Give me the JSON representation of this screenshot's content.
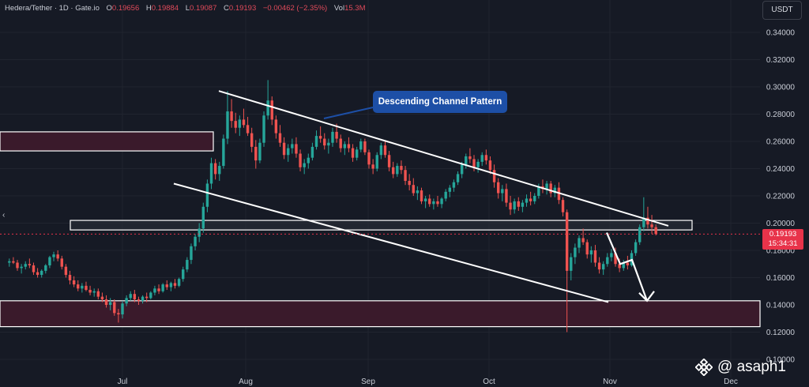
{
  "header": {
    "pair": "Hedera/Tether · 1D · Gate.io",
    "o_label": "O",
    "o_value": "0.19656",
    "h_label": "H",
    "h_value": "0.19884",
    "l_label": "L",
    "l_value": "0.19087",
    "c_label": "C",
    "c_value": "0.19193",
    "change": "−0.00462 (−2.35%)",
    "vol_label": "Vol",
    "vol_value": "15.3M"
  },
  "currency_button": "USDT",
  "annotation": "Descending Channel Pattern",
  "current_price": {
    "value": "0.19193",
    "countdown": "15:34:31"
  },
  "watermark": "@ asaph1",
  "colors": {
    "background": "#161a25",
    "up": "#26a69a",
    "down": "#ef5350",
    "zone_fill": "#3a1a2b",
    "callout": "#1d4fa6",
    "price_tag": "#e8334a"
  },
  "chart_data": {
    "type": "candlestick",
    "ylim": [
      0.1,
      0.35
    ],
    "y_ticks": [
      "0.34000",
      "0.32000",
      "0.30000",
      "0.28000",
      "0.26000",
      "0.24000",
      "0.22000",
      "0.20000",
      "0.18000",
      "0.16000",
      "0.14000",
      "0.12000",
      "0.10000"
    ],
    "x_ticks": [
      "Jul",
      "Aug",
      "Sep",
      "Oct",
      "Nov",
      "Dec"
    ],
    "trendlines": [
      {
        "name": "channel-upper",
        "from": [
          "Jul 27",
          0.297
        ],
        "to": [
          "Nov 18",
          0.198
        ]
      },
      {
        "name": "channel-lower",
        "from": [
          "Jul 13",
          0.229
        ],
        "to": [
          "Nov 1",
          0.142
        ]
      }
    ],
    "zones": [
      {
        "name": "resistance-zone-left",
        "y_range": [
          0.253,
          0.267
        ]
      },
      {
        "name": "pivot-zone",
        "y_range": [
          0.195,
          0.202
        ]
      },
      {
        "name": "support-zone",
        "y_range": [
          0.124,
          0.143
        ]
      }
    ],
    "projection": [
      0.193,
      0.17,
      0.173,
      0.143
    ],
    "series": [
      {
        "start": "Jun 3",
        "interval_days": 1,
        "ohlc": [
          [
            0.171,
            0.174,
            0.168,
            0.172
          ],
          [
            0.172,
            0.175,
            0.17,
            0.171
          ],
          [
            0.171,
            0.173,
            0.165,
            0.167
          ],
          [
            0.167,
            0.17,
            0.163,
            0.168
          ],
          [
            0.168,
            0.172,
            0.166,
            0.17
          ],
          [
            0.17,
            0.174,
            0.167,
            0.169
          ],
          [
            0.169,
            0.171,
            0.162,
            0.164
          ],
          [
            0.164,
            0.167,
            0.16,
            0.162
          ],
          [
            0.162,
            0.166,
            0.16,
            0.165
          ],
          [
            0.165,
            0.17,
            0.163,
            0.169
          ],
          [
            0.169,
            0.176,
            0.167,
            0.175
          ],
          [
            0.175,
            0.179,
            0.172,
            0.177
          ],
          [
            0.177,
            0.18,
            0.172,
            0.174
          ],
          [
            0.174,
            0.176,
            0.166,
            0.168
          ],
          [
            0.168,
            0.17,
            0.16,
            0.162
          ],
          [
            0.162,
            0.165,
            0.155,
            0.158
          ],
          [
            0.158,
            0.161,
            0.153,
            0.155
          ],
          [
            0.155,
            0.158,
            0.15,
            0.152
          ],
          [
            0.152,
            0.156,
            0.149,
            0.154
          ],
          [
            0.154,
            0.157,
            0.15,
            0.151
          ],
          [
            0.151,
            0.154,
            0.147,
            0.149
          ],
          [
            0.149,
            0.152,
            0.146,
            0.15
          ],
          [
            0.15,
            0.152,
            0.144,
            0.146
          ],
          [
            0.146,
            0.149,
            0.142,
            0.144
          ],
          [
            0.144,
            0.147,
            0.138,
            0.14
          ],
          [
            0.14,
            0.145,
            0.136,
            0.142
          ],
          [
            0.142,
            0.144,
            0.132,
            0.134
          ],
          [
            0.134,
            0.137,
            0.127,
            0.133
          ],
          [
            0.133,
            0.143,
            0.13,
            0.141
          ],
          [
            0.141,
            0.147,
            0.139,
            0.145
          ],
          [
            0.145,
            0.15,
            0.143,
            0.148
          ],
          [
            0.148,
            0.151,
            0.142,
            0.144
          ],
          [
            0.144,
            0.146,
            0.14,
            0.143
          ],
          [
            0.143,
            0.147,
            0.141,
            0.146
          ],
          [
            0.146,
            0.149,
            0.142,
            0.145
          ],
          [
            0.145,
            0.15,
            0.144,
            0.149
          ],
          [
            0.149,
            0.154,
            0.147,
            0.152
          ],
          [
            0.152,
            0.155,
            0.148,
            0.15
          ],
          [
            0.15,
            0.156,
            0.149,
            0.155
          ],
          [
            0.155,
            0.158,
            0.151,
            0.153
          ],
          [
            0.153,
            0.157,
            0.15,
            0.156
          ],
          [
            0.156,
            0.159,
            0.152,
            0.154
          ],
          [
            0.154,
            0.16,
            0.153,
            0.159
          ],
          [
            0.159,
            0.168,
            0.157,
            0.166
          ],
          [
            0.166,
            0.175,
            0.164,
            0.173
          ],
          [
            0.173,
            0.185,
            0.17,
            0.183
          ],
          [
            0.183,
            0.192,
            0.18,
            0.19
          ],
          [
            0.19,
            0.2,
            0.186,
            0.196
          ],
          [
            0.196,
            0.215,
            0.193,
            0.212
          ],
          [
            0.212,
            0.232,
            0.208,
            0.229
          ],
          [
            0.229,
            0.248,
            0.225,
            0.244
          ],
          [
            0.244,
            0.247,
            0.232,
            0.236
          ],
          [
            0.236,
            0.245,
            0.231,
            0.242
          ],
          [
            0.242,
            0.265,
            0.24,
            0.262
          ],
          [
            0.262,
            0.297,
            0.258,
            0.282
          ],
          [
            0.282,
            0.291,
            0.27,
            0.275
          ],
          [
            0.275,
            0.281,
            0.266,
            0.27
          ],
          [
            0.27,
            0.279,
            0.264,
            0.276
          ],
          [
            0.276,
            0.284,
            0.27,
            0.272
          ],
          [
            0.272,
            0.278,
            0.264,
            0.266
          ],
          [
            0.266,
            0.27,
            0.252,
            0.256
          ],
          [
            0.256,
            0.261,
            0.24,
            0.246
          ],
          [
            0.246,
            0.262,
            0.244,
            0.259
          ],
          [
            0.259,
            0.282,
            0.256,
            0.279
          ],
          [
            0.279,
            0.305,
            0.276,
            0.29
          ],
          [
            0.29,
            0.293,
            0.272,
            0.276
          ],
          [
            0.276,
            0.279,
            0.262,
            0.266
          ],
          [
            0.266,
            0.272,
            0.256,
            0.259
          ],
          [
            0.259,
            0.263,
            0.247,
            0.25
          ],
          [
            0.25,
            0.258,
            0.245,
            0.255
          ],
          [
            0.255,
            0.262,
            0.251,
            0.258
          ],
          [
            0.258,
            0.263,
            0.248,
            0.251
          ],
          [
            0.251,
            0.254,
            0.238,
            0.241
          ],
          [
            0.241,
            0.247,
            0.236,
            0.244
          ],
          [
            0.244,
            0.251,
            0.24,
            0.248
          ],
          [
            0.248,
            0.259,
            0.246,
            0.256
          ],
          [
            0.256,
            0.268,
            0.254,
            0.264
          ],
          [
            0.264,
            0.271,
            0.259,
            0.262
          ],
          [
            0.262,
            0.266,
            0.254,
            0.257
          ],
          [
            0.257,
            0.262,
            0.251,
            0.259
          ],
          [
            0.259,
            0.27,
            0.256,
            0.267
          ],
          [
            0.267,
            0.273,
            0.259,
            0.262
          ],
          [
            0.262,
            0.265,
            0.252,
            0.255
          ],
          [
            0.255,
            0.26,
            0.25,
            0.258
          ],
          [
            0.258,
            0.263,
            0.252,
            0.255
          ],
          [
            0.255,
            0.258,
            0.245,
            0.248
          ],
          [
            0.248,
            0.256,
            0.246,
            0.254
          ],
          [
            0.254,
            0.262,
            0.252,
            0.26
          ],
          [
            0.26,
            0.262,
            0.25,
            0.252
          ],
          [
            0.252,
            0.254,
            0.24,
            0.243
          ],
          [
            0.243,
            0.247,
            0.236,
            0.24
          ],
          [
            0.24,
            0.252,
            0.238,
            0.25
          ],
          [
            0.25,
            0.259,
            0.247,
            0.257
          ],
          [
            0.257,
            0.26,
            0.248,
            0.25
          ],
          [
            0.25,
            0.253,
            0.238,
            0.241
          ],
          [
            0.241,
            0.245,
            0.233,
            0.236
          ],
          [
            0.236,
            0.244,
            0.234,
            0.242
          ],
          [
            0.242,
            0.246,
            0.236,
            0.239
          ],
          [
            0.239,
            0.242,
            0.228,
            0.231
          ],
          [
            0.231,
            0.236,
            0.224,
            0.228
          ],
          [
            0.228,
            0.233,
            0.22,
            0.222
          ],
          [
            0.222,
            0.227,
            0.217,
            0.224
          ],
          [
            0.224,
            0.226,
            0.214,
            0.216
          ],
          [
            0.216,
            0.22,
            0.211,
            0.218
          ],
          [
            0.218,
            0.221,
            0.212,
            0.214
          ],
          [
            0.214,
            0.218,
            0.21,
            0.216
          ],
          [
            0.216,
            0.22,
            0.212,
            0.214
          ],
          [
            0.214,
            0.219,
            0.211,
            0.218
          ],
          [
            0.218,
            0.225,
            0.216,
            0.223
          ],
          [
            0.223,
            0.228,
            0.219,
            0.226
          ],
          [
            0.226,
            0.232,
            0.223,
            0.23
          ],
          [
            0.23,
            0.238,
            0.228,
            0.236
          ],
          [
            0.236,
            0.245,
            0.233,
            0.243
          ],
          [
            0.243,
            0.251,
            0.24,
            0.249
          ],
          [
            0.249,
            0.255,
            0.244,
            0.247
          ],
          [
            0.247,
            0.25,
            0.238,
            0.241
          ],
          [
            0.241,
            0.247,
            0.237,
            0.245
          ],
          [
            0.245,
            0.252,
            0.242,
            0.25
          ],
          [
            0.25,
            0.254,
            0.243,
            0.246
          ],
          [
            0.246,
            0.249,
            0.236,
            0.239
          ],
          [
            0.239,
            0.243,
            0.226,
            0.23
          ],
          [
            0.23,
            0.233,
            0.218,
            0.222
          ],
          [
            0.222,
            0.228,
            0.216,
            0.225
          ],
          [
            0.225,
            0.229,
            0.212,
            0.215
          ],
          [
            0.215,
            0.22,
            0.206,
            0.21
          ],
          [
            0.21,
            0.218,
            0.207,
            0.216
          ],
          [
            0.216,
            0.219,
            0.209,
            0.212
          ],
          [
            0.212,
            0.217,
            0.208,
            0.215
          ],
          [
            0.215,
            0.221,
            0.212,
            0.218
          ],
          [
            0.218,
            0.223,
            0.213,
            0.216
          ],
          [
            0.216,
            0.222,
            0.214,
            0.22
          ],
          [
            0.22,
            0.229,
            0.218,
            0.227
          ],
          [
            0.227,
            0.232,
            0.222,
            0.225
          ],
          [
            0.225,
            0.231,
            0.221,
            0.229
          ],
          [
            0.229,
            0.231,
            0.219,
            0.222
          ],
          [
            0.222,
            0.228,
            0.219,
            0.226
          ],
          [
            0.226,
            0.23,
            0.214,
            0.217
          ],
          [
            0.217,
            0.219,
            0.205,
            0.208
          ],
          [
            0.208,
            0.21,
            0.12,
            0.165
          ],
          [
            0.165,
            0.178,
            0.158,
            0.175
          ],
          [
            0.175,
            0.185,
            0.17,
            0.182
          ],
          [
            0.182,
            0.191,
            0.178,
            0.189
          ],
          [
            0.189,
            0.196,
            0.184,
            0.186
          ],
          [
            0.186,
            0.188,
            0.174,
            0.177
          ],
          [
            0.177,
            0.183,
            0.171,
            0.18
          ],
          [
            0.18,
            0.184,
            0.168,
            0.171
          ],
          [
            0.171,
            0.175,
            0.163,
            0.166
          ],
          [
            0.166,
            0.172,
            0.162,
            0.17
          ],
          [
            0.17,
            0.178,
            0.168,
            0.175
          ],
          [
            0.175,
            0.181,
            0.172,
            0.178
          ],
          [
            0.178,
            0.182,
            0.168,
            0.17
          ],
          [
            0.17,
            0.174,
            0.164,
            0.167
          ],
          [
            0.167,
            0.173,
            0.165,
            0.171
          ],
          [
            0.171,
            0.176,
            0.166,
            0.169
          ],
          [
            0.169,
            0.18,
            0.168,
            0.178
          ],
          [
            0.178,
            0.188,
            0.176,
            0.186
          ],
          [
            0.186,
            0.199,
            0.184,
            0.197
          ],
          [
            0.197,
            0.219,
            0.194,
            0.204
          ],
          [
            0.204,
            0.212,
            0.196,
            0.199
          ],
          [
            0.199,
            0.206,
            0.192,
            0.197
          ],
          [
            0.197,
            0.199,
            0.191,
            0.192
          ]
        ]
      }
    ]
  }
}
